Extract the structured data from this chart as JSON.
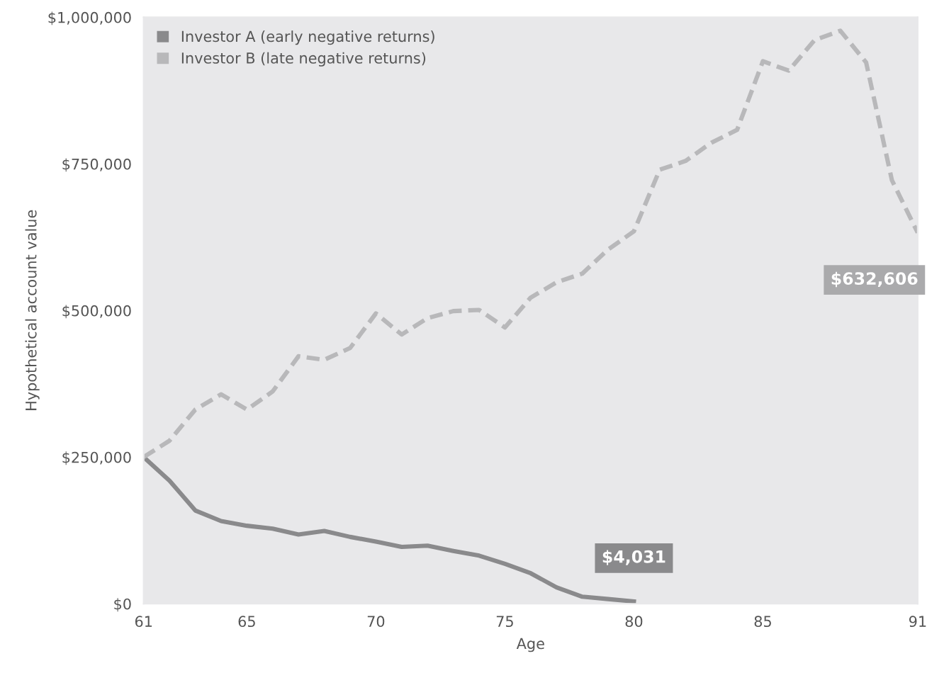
{
  "chart_data": {
    "type": "line",
    "xlabel": "Age",
    "ylabel": "Hypothetical account value",
    "xlim": [
      61,
      91
    ],
    "xticks": [
      61,
      65,
      70,
      75,
      80,
      85,
      91
    ],
    "ylim": [
      0,
      1000000
    ],
    "yticks": [
      {
        "value": 0,
        "label": "$0"
      },
      {
        "value": 250000,
        "label": "$250,000"
      },
      {
        "value": 500000,
        "label": "$500,000"
      },
      {
        "value": 750000,
        "label": "$750,000"
      },
      {
        "value": 1000000,
        "label": "$1,000,000"
      }
    ],
    "grid": false,
    "legend": "top left",
    "series": [
      {
        "name": "Investor A (early negative returns)",
        "color": "#8a8a8c",
        "line_style": "solid",
        "x": [
          61,
          62,
          63,
          64,
          65,
          66,
          67,
          68,
          69,
          70,
          71,
          72,
          73,
          74,
          75,
          76,
          77,
          78,
          79,
          80
        ],
        "values": [
          250000,
          210000,
          159000,
          141000,
          133000,
          128000,
          118000,
          124000,
          114000,
          106000,
          97000,
          99000,
          90000,
          82000,
          68000,
          52000,
          28000,
          12000,
          8000,
          4031
        ],
        "value_labels": [
          null,
          null,
          null,
          null,
          null,
          null,
          null,
          null,
          null,
          null,
          null,
          null,
          null,
          null,
          null,
          null,
          null,
          null,
          null,
          "$4,031"
        ]
      },
      {
        "name": "Investor B (late negative returns)",
        "color": "#b8b8ba",
        "line_style": "dashed",
        "x": [
          61,
          62,
          63,
          64,
          65,
          66,
          67,
          68,
          69,
          70,
          71,
          72,
          73,
          74,
          75,
          76,
          77,
          78,
          79,
          80,
          81,
          82,
          83,
          84,
          85,
          86,
          87,
          88,
          89,
          90,
          91
        ],
        "values": [
          250000,
          278000,
          331000,
          357000,
          331000,
          362000,
          422000,
          416000,
          436000,
          495000,
          459000,
          487000,
          499000,
          501000,
          471000,
          522000,
          548000,
          563000,
          604000,
          635000,
          740000,
          755000,
          786000,
          808000,
          925000,
          909000,
          961000,
          977000,
          923000,
          722000,
          632606
        ],
        "value_labels": [
          null,
          null,
          null,
          null,
          null,
          null,
          null,
          null,
          null,
          null,
          null,
          null,
          null,
          null,
          null,
          null,
          null,
          null,
          null,
          null,
          null,
          null,
          null,
          null,
          null,
          null,
          null,
          null,
          null,
          null,
          "$632,606"
        ]
      }
    ]
  }
}
